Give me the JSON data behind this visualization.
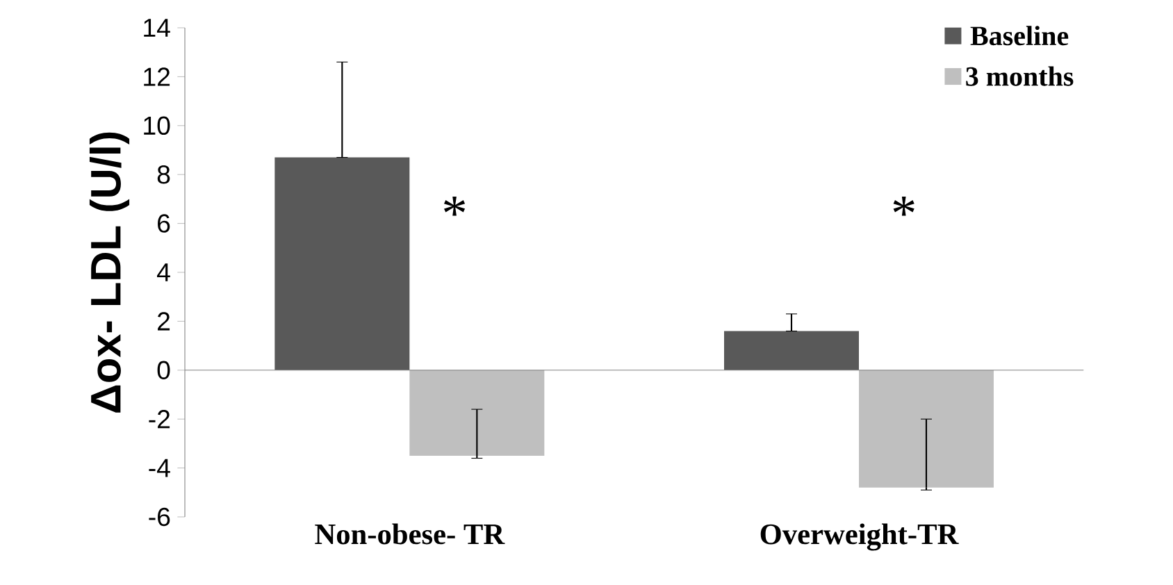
{
  "chart_data": {
    "type": "bar",
    "ylabel": "Δox- LDL (U/l)",
    "categories": [
      "Non-obese- TR",
      "Overweight-TR"
    ],
    "series": [
      {
        "name": "Baseline",
        "color": "#595959",
        "values": [
          8.7,
          1.6
        ],
        "errors": [
          [
            8.7,
            12.6
          ],
          [
            1.6,
            2.3
          ]
        ]
      },
      {
        "name": "3 months",
        "color": "#bfbfbf",
        "values": [
          -3.5,
          -4.8
        ],
        "errors": [
          [
            -3.6,
            -1.6
          ],
          [
            -4.9,
            -2.0
          ]
        ]
      }
    ],
    "ylim": [
      -6,
      14
    ],
    "yticks": [
      -6,
      -4,
      -2,
      0,
      2,
      4,
      6,
      8,
      10,
      12,
      14
    ],
    "annotations": [
      "*",
      "*"
    ],
    "legend": "top right"
  }
}
